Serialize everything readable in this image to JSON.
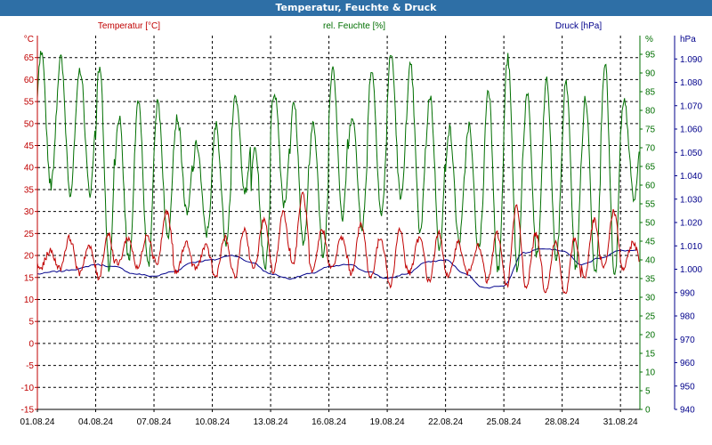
{
  "window": {
    "title": "Temperatur, Feuchte & Druck"
  },
  "colors": {
    "titlebar": "#2e6fa6",
    "temperature": "#c00000",
    "humidity": "#006f00",
    "pressure": "#00008b",
    "grid": "#000000"
  },
  "chart_data": {
    "type": "line",
    "title": "Temperatur, Feuchte & Druck",
    "grid": true,
    "x": {
      "range": [
        "01.08.24 00:00",
        "01.09.24 00:00"
      ],
      "tick_labels": [
        "01.08.24",
        "04.08.24",
        "07.08.24",
        "10.08.24",
        "13.08.24",
        "16.08.24",
        "19.08.24",
        "22.08.24",
        "25.08.24",
        "28.08.24",
        "31.08.24"
      ]
    },
    "y_axes": [
      {
        "id": "temp",
        "unit": "°C",
        "label": "Temperatur [°C]",
        "side": "left",
        "range": [
          -15,
          70
        ],
        "ticks": [
          -15,
          -10,
          -5,
          0,
          5,
          10,
          15,
          20,
          25,
          30,
          35,
          40,
          45,
          50,
          55,
          60,
          65
        ]
      },
      {
        "id": "hum",
        "unit": "%",
        "label": "rel. Feuchte [%]",
        "side": "right",
        "range": [
          0,
          100
        ],
        "ticks": [
          0,
          5,
          10,
          15,
          20,
          25,
          30,
          35,
          40,
          45,
          50,
          55,
          60,
          65,
          70,
          75,
          80,
          85,
          90,
          95
        ]
      },
      {
        "id": "press",
        "unit": "hPa",
        "label": "Druck [hPa]",
        "side": "right",
        "range": [
          940,
          1100
        ],
        "ticks": [
          "940",
          "950",
          "960",
          "970",
          "980",
          "990",
          "1.000",
          "1.010",
          "1.020",
          "1.030",
          "1.040",
          "1.050",
          "1.060",
          "1.070",
          "1.080",
          "1.090"
        ]
      }
    ],
    "series": [
      {
        "name": "Temperatur [°C]",
        "axis": "temp",
        "color": "#c00000",
        "daily_min": [
          17,
          17,
          16,
          15,
          18,
          17,
          18,
          16,
          17,
          15,
          15,
          17,
          16,
          18,
          16,
          17,
          16,
          15,
          13,
          16,
          14,
          15,
          16,
          14,
          13,
          13,
          12,
          11,
          15,
          17,
          17,
          15
        ],
        "daily_max": [
          21,
          24,
          22,
          25,
          24,
          25,
          30,
          23,
          22,
          24,
          26,
          28,
          30,
          34,
          26,
          24,
          27,
          24,
          26,
          24,
          25,
          23,
          22,
          25,
          31,
          25,
          23,
          24,
          28,
          30,
          23,
          26
        ]
      },
      {
        "name": "rel. Feuchte [%]",
        "axis": "hum",
        "color": "#006f00",
        "daily_max": [
          95,
          94,
          91,
          92,
          78,
          83,
          82,
          78,
          71,
          76,
          83,
          70,
          85,
          82,
          77,
          92,
          79,
          91,
          95,
          92,
          84,
          75,
          76,
          86,
          94,
          84,
          88,
          88,
          83,
          93,
          82,
          83
        ],
        "daily_min": [
          60,
          58,
          58,
          37,
          40,
          38,
          46,
          52,
          47,
          45,
          58,
          38,
          55,
          44,
          41,
          51,
          49,
          52,
          56,
          47,
          43,
          45,
          43,
          37,
          37,
          41,
          40,
          38,
          37,
          35,
          56,
          58
        ]
      },
      {
        "name": "Druck [hPa]",
        "axis": "press",
        "color": "#00008b",
        "daily_mean": [
          998,
          999,
          1000,
          1002,
          1001,
          998,
          997,
          999,
          1003,
          1004,
          1006,
          1003,
          998,
          996,
          998,
          1001,
          1002,
          999,
          996,
          998,
          1003,
          1004,
          998,
          992,
          993,
          1007,
          1009,
          1008,
          1002,
          1005,
          1008,
          1007
        ]
      }
    ]
  }
}
